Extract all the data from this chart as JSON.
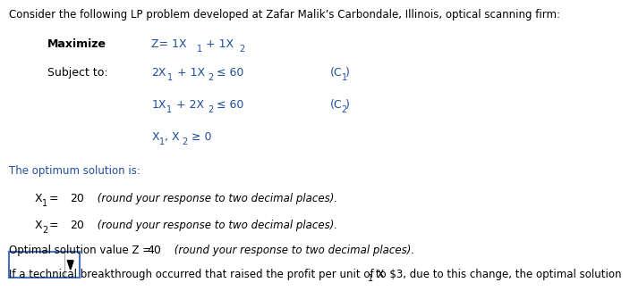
{
  "background_color": "#ffffff",
  "title_text": "Consider the following LP problem developed at Zafar Malik’s Carbondale, Illinois, optical scanning firm:",
  "maximize_label": "Maximize",
  "subject_label": "Subject to:",
  "optimum_header": "The optimum solution is:",
  "x1_val": "20",
  "x2_val": "20",
  "z_val": "40",
  "italic_text": " (round your response to two decimal places).",
  "last_line_a": "If a technical breakthrough occurred that raised the profit per unit of X",
  "last_line_b": " to $3, due to this change, the optimal solution",
  "highlight_color": "#c8d8f0",
  "text_color": "#000000",
  "blue_color": "#1e4d9e",
  "dropdown_border": "#4472c4"
}
